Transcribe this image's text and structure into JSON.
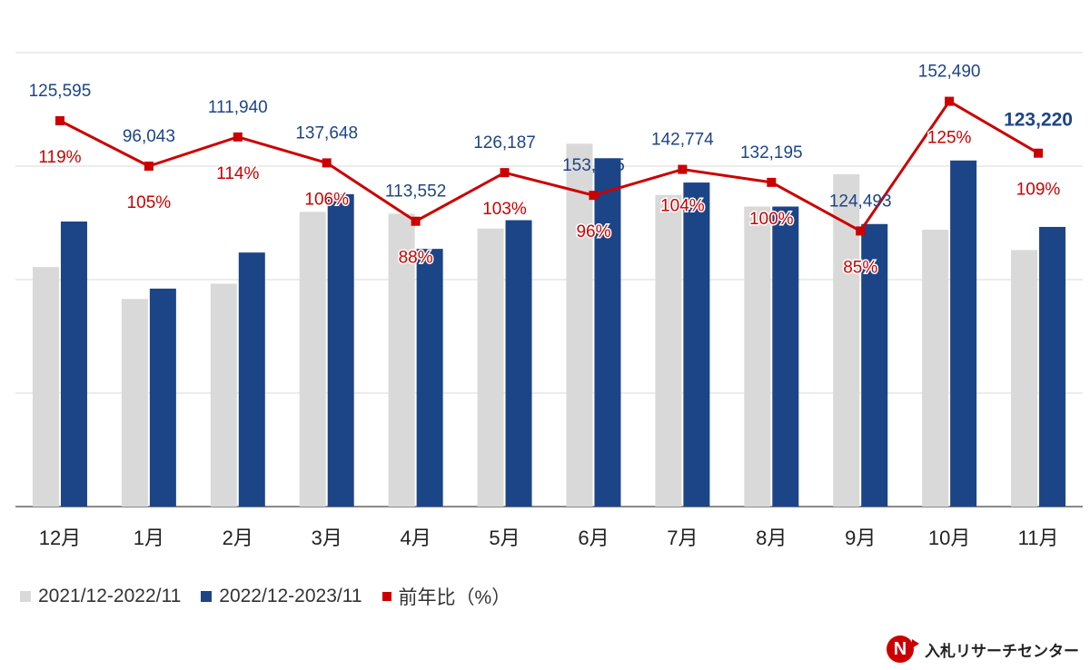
{
  "chart_data": {
    "type": "bar+line",
    "categories": [
      "12月",
      "1月",
      "2月",
      "3月",
      "4月",
      "5月",
      "6月",
      "7月",
      "8月",
      "9月",
      "10月",
      "11月"
    ],
    "series": [
      {
        "name": "2021/12-2022/11",
        "kind": "bar",
        "color": "#d9d9d9",
        "values": [
          105541,
          91470,
          98193,
          129855,
          129036,
          122511,
          159890,
          137283,
          132195,
          146462,
          121992,
          113046
        ]
      },
      {
        "name": "2022/12-2023/11",
        "kind": "bar",
        "color": "#1c4587",
        "values": [
          125595,
          96043,
          111940,
          137648,
          113552,
          126187,
          153495,
          142774,
          132195,
          124493,
          152490,
          123220
        ]
      },
      {
        "name": "前年比（%）",
        "kind": "line",
        "axis": "ratio",
        "color": "#cc0000",
        "values": [
          119,
          105,
          114,
          106,
          88,
          103,
          96,
          104,
          100,
          85,
          125,
          109
        ]
      }
    ],
    "value_labels": [
      "125,595",
      "96,043",
      "111,940",
      "137,648",
      "113,552",
      "126,187",
      "153,495",
      "142,774",
      "132,195",
      "124,493",
      "152,490",
      "123,220"
    ],
    "ratio_labels": [
      "119%",
      "105%",
      "114%",
      "106%",
      "88%",
      "103%",
      "96%",
      "104%",
      "100%",
      "85%",
      "125%",
      "109%"
    ],
    "highlight_index": 11,
    "ylim": [
      0,
      200000
    ],
    "ratio_ylim": [
      0,
      140
    ],
    "gridlines": 4,
    "legend_position": "bottom-left"
  },
  "legend": {
    "items": [
      "2021/12-2022/11",
      "2022/12-2023/11",
      "前年比（%）"
    ]
  },
  "branding": {
    "logo_letter": "N",
    "name": "入札リサーチセンター"
  }
}
